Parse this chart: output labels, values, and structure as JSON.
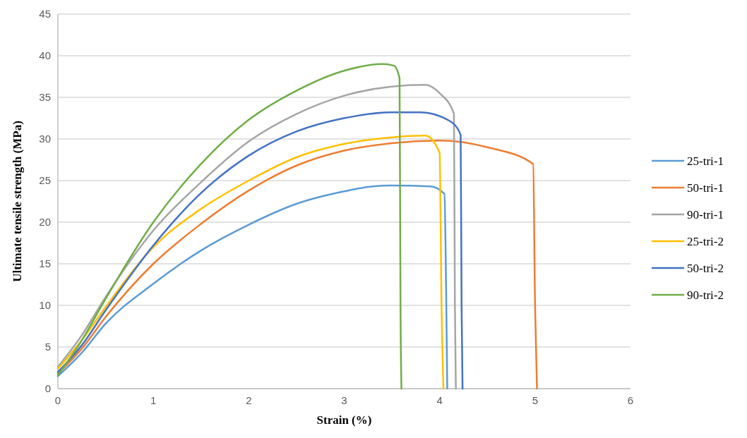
{
  "chart_data": {
    "type": "line",
    "xlabel": "Strain (%)",
    "ylabel": "Ultimate tensile strength (MPa)",
    "xlim": [
      0,
      6
    ],
    "xticks": [
      0,
      1,
      2,
      3,
      4,
      5,
      6
    ],
    "ylim": [
      0,
      45
    ],
    "yticks": [
      0,
      5,
      10,
      15,
      20,
      25,
      30,
      35,
      40,
      45
    ],
    "grid": "y",
    "legend": "right",
    "marker": "none",
    "series": [
      {
        "name": "25-tri-1",
        "color": "#5b9bd5",
        "x": [
          0,
          0.25,
          0.5,
          1,
          1.5,
          2,
          2.5,
          3,
          3.3,
          3.5,
          3.9,
          4.05,
          4.07,
          4.08
        ],
        "values": [
          1.5,
          4.3,
          7.8,
          12.6,
          16.6,
          19.7,
          22.2,
          23.7,
          24.3,
          24.4,
          24.3,
          23.4,
          10,
          0
        ]
      },
      {
        "name": "50-tri-1",
        "color": "#ed7d31",
        "x": [
          0,
          0.25,
          0.5,
          1,
          1.5,
          2,
          2.5,
          3,
          3.5,
          4,
          4.5,
          4.98,
          5,
          5.02
        ],
        "values": [
          1.8,
          4.8,
          8.6,
          15,
          19.8,
          23.8,
          26.8,
          28.6,
          29.5,
          29.8,
          29,
          27,
          10,
          0
        ]
      },
      {
        "name": "90-tri-1",
        "color": "#a5a5a5",
        "x": [
          0,
          0.25,
          0.5,
          1,
          1.5,
          2,
          2.5,
          3,
          3.5,
          3.85,
          4,
          4.15,
          4.16,
          4.17
        ],
        "values": [
          2.6,
          6.4,
          11,
          19,
          24.8,
          29.7,
          33,
          35.2,
          36.3,
          36.5,
          35.5,
          33,
          10,
          0
        ]
      },
      {
        "name": "25-tri-2",
        "color": "#ffc000",
        "x": [
          0,
          0.25,
          0.5,
          1,
          1.5,
          2,
          2.5,
          3,
          3.5,
          3.85,
          4,
          4.02,
          4.04
        ],
        "values": [
          2.4,
          5.8,
          9.8,
          17,
          21.6,
          25,
          27.8,
          29.4,
          30.2,
          30.4,
          28.3,
          10,
          0
        ]
      },
      {
        "name": "50-tri-2",
        "color": "#4472c4",
        "x": [
          0,
          0.25,
          0.5,
          1,
          1.5,
          2,
          2.5,
          3,
          3.5,
          3.8,
          4.1,
          4.22,
          4.23,
          4.24
        ],
        "values": [
          2,
          5.2,
          9.4,
          17.2,
          23.5,
          28,
          30.9,
          32.5,
          33.2,
          33.2,
          32.2,
          30.5,
          10,
          0
        ]
      },
      {
        "name": "90-tri-2",
        "color": "#70ad47",
        "x": [
          0,
          0.25,
          0.5,
          1,
          1.5,
          2,
          2.5,
          3,
          3.4,
          3.52,
          3.58,
          3.59,
          3.6
        ],
        "values": [
          1.6,
          5.8,
          10.8,
          20,
          27,
          32.3,
          35.8,
          38.2,
          39,
          38.8,
          37.3,
          10,
          0
        ]
      }
    ]
  }
}
